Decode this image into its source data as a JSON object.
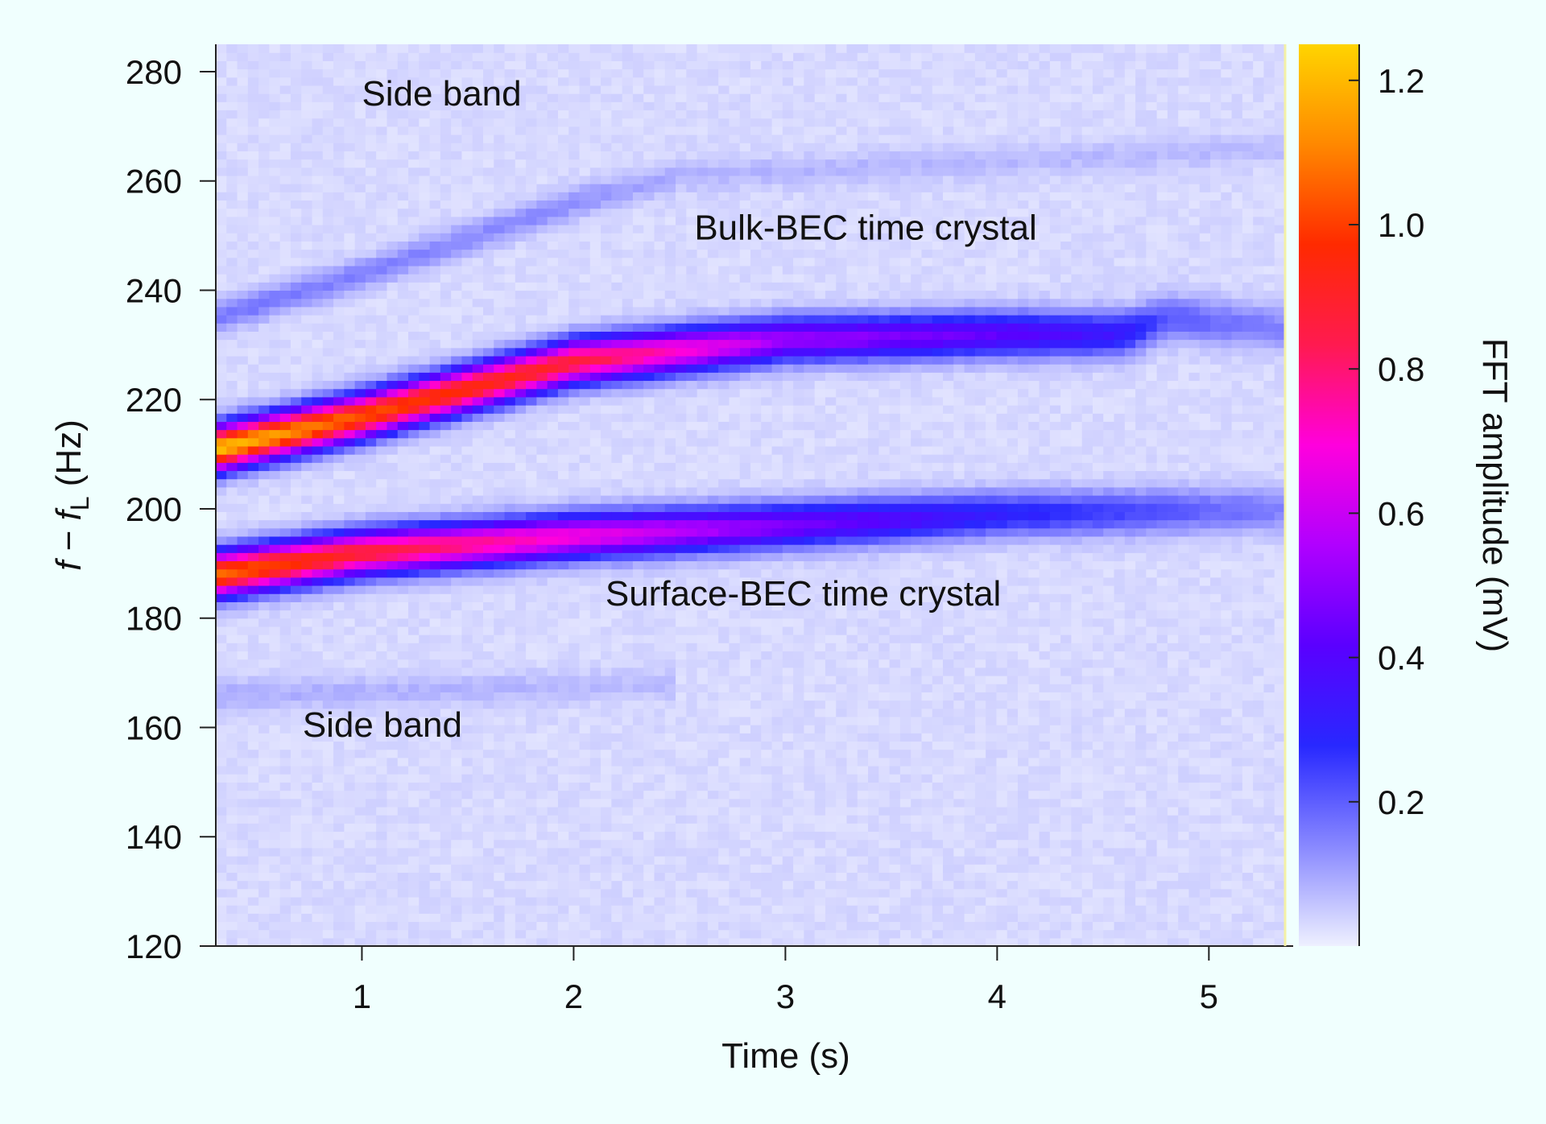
{
  "chart_data": {
    "type": "heatmap",
    "title": "",
    "xlabel": "Time (s)",
    "ylabel": {
      "var1": "f",
      "minus": " − ",
      "var2": "f",
      "subscript": "L",
      "unit": " (Hz)"
    },
    "xlim": [
      0.31,
      5.36
    ],
    "ylim": [
      120,
      285
    ],
    "x_ticks": [
      1,
      2,
      3,
      4,
      5
    ],
    "y_ticks": [
      120,
      140,
      160,
      180,
      200,
      220,
      240,
      260,
      280
    ],
    "colorbar": {
      "label": "FFT amplitude (mV)",
      "range": [
        0,
        1.25
      ],
      "ticks": [
        0.2,
        0.4,
        0.6,
        0.8,
        1.0,
        1.2
      ],
      "tick_labels": [
        "0.2",
        "0.4",
        "0.6",
        "0.8",
        "1.0",
        "1.2"
      ],
      "colormap": [
        "#eef0ff",
        "#8888ff",
        "#2828ff",
        "#5a00ff",
        "#b000ff",
        "#ff00dd",
        "#ff1a50",
        "#ff2a00",
        "#ff8800",
        "#ffd400"
      ]
    },
    "background_amplitude": 0.03,
    "series": [
      {
        "points": [
          {
            "t": 0.31,
            "f": 211,
            "a": 1.2
          },
          {
            "t": 1.0,
            "f": 217,
            "a": 1.0
          },
          {
            "t": 2.0,
            "f": 227,
            "a": 0.85
          },
          {
            "t": 3.0,
            "f": 231,
            "a": 0.5
          },
          {
            "t": 4.0,
            "f": 232,
            "a": 0.4
          },
          {
            "t": 4.6,
            "f": 232,
            "a": 0.3
          },
          {
            "t": 4.8,
            "f": 235,
            "a": 0.18
          },
          {
            "t": 5.36,
            "f": 233,
            "a": 0.12
          }
        ],
        "width_hz": 2.8
      },
      {
        "points": [
          {
            "t": 0.31,
            "f": 188,
            "a": 1.05
          },
          {
            "t": 1.0,
            "f": 192,
            "a": 0.85
          },
          {
            "t": 2.0,
            "f": 195,
            "a": 0.65
          },
          {
            "t": 3.0,
            "f": 197,
            "a": 0.45
          },
          {
            "t": 4.0,
            "f": 199,
            "a": 0.28
          },
          {
            "t": 5.36,
            "f": 200,
            "a": 0.12
          }
        ],
        "width_hz": 2.8
      },
      {
        "points": [
          {
            "t": 0.31,
            "f": 235,
            "a": 0.14
          },
          {
            "t": 1.0,
            "f": 243,
            "a": 0.12
          },
          {
            "t": 2.0,
            "f": 256,
            "a": 0.1
          },
          {
            "t": 2.5,
            "f": 261,
            "a": 0.06
          }
        ],
        "width_hz": 2.0
      },
      {
        "points": [
          {
            "t": 2.5,
            "f": 261,
            "a": 0.05
          },
          {
            "t": 5.36,
            "f": 266,
            "a": 0.04
          }
        ],
        "width_hz": 2.0
      },
      {
        "points": [
          {
            "t": 0.31,
            "f": 166,
            "a": 0.06
          },
          {
            "t": 1.5,
            "f": 167,
            "a": 0.05
          },
          {
            "t": 2.5,
            "f": 168,
            "a": 0.04
          }
        ],
        "width_hz": 2.0
      }
    ],
    "annotations": [
      {
        "text": "Side band",
        "t": 1.0,
        "f": 276
      },
      {
        "text": "Bulk-BEC time crystal",
        "t": 2.57,
        "f": 251.5
      },
      {
        "text": "Surface-BEC time crystal",
        "t": 2.15,
        "f": 184.5
      },
      {
        "text": "Side band",
        "t": 0.72,
        "f": 160.5
      }
    ]
  }
}
